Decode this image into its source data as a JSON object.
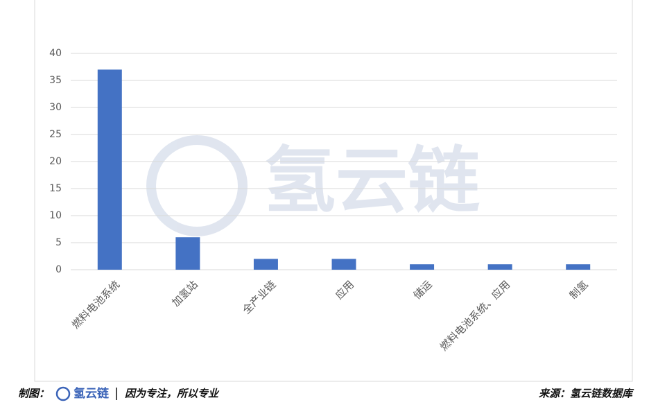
{
  "chart_data": {
    "type": "bar",
    "categories": [
      "燃料电池系统",
      "加氢站",
      "全产业链",
      "应用",
      "储运",
      "燃料电池系统、应用",
      "制氢"
    ],
    "values": [
      37,
      6,
      2,
      2,
      1,
      1,
      1
    ],
    "color": "#4472c4",
    "ylim": [
      0,
      40
    ],
    "yticks": [
      0,
      5,
      10,
      15,
      20,
      25,
      30,
      35,
      40
    ],
    "grid": true,
    "watermark": "氢云链"
  },
  "footer": {
    "left_label": "制图：",
    "brand": "氢云链",
    "slogan": "因为专注，所以专业",
    "source": "来源：氢云链数据库"
  }
}
